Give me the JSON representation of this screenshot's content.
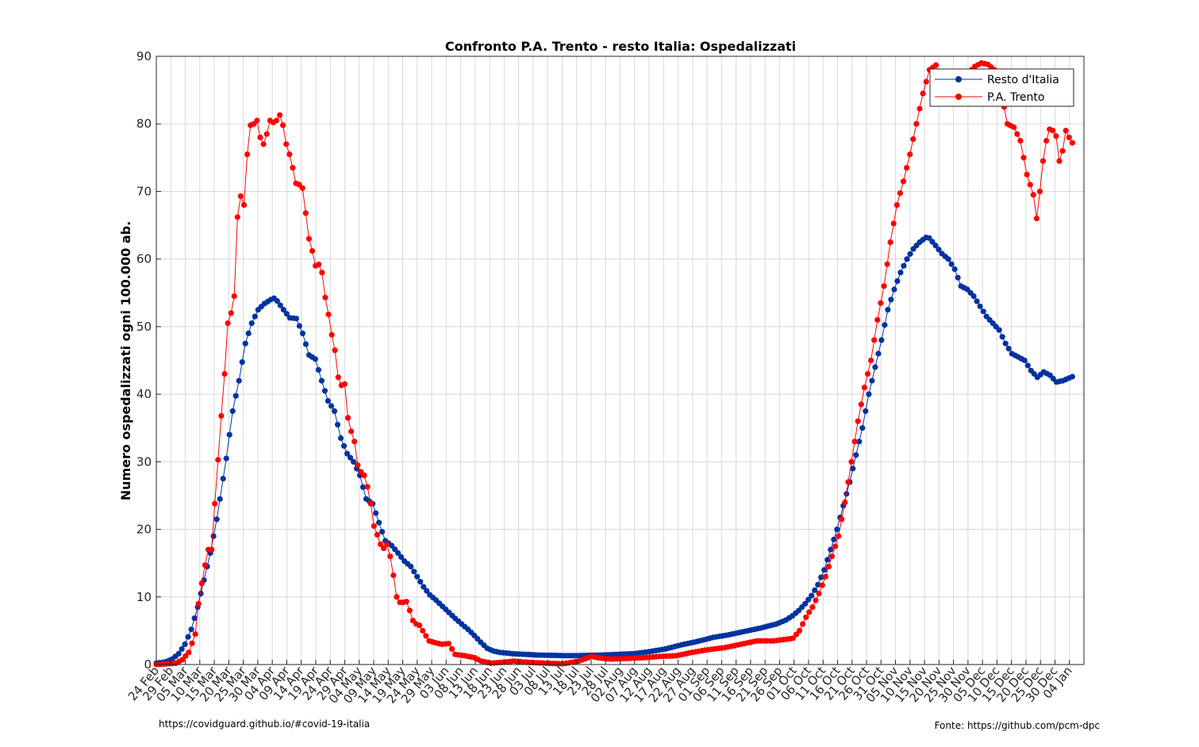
{
  "chart_data": {
    "type": "line",
    "title": "Confronto P.A. Trento - resto Italia: Ospedalizzati",
    "xlabel": "",
    "ylabel": "Numero ospedalizzati ogni 100.000 ab.",
    "ylim": [
      0,
      90
    ],
    "yticks": [
      0,
      10,
      20,
      30,
      40,
      50,
      60,
      70,
      80,
      90
    ],
    "x_start": "24 Feb",
    "x_day_count": 316,
    "tick_every_days": 5,
    "tick_labels": [
      "24 Feb",
      "29 Feb",
      "05 Mar",
      "10 Mar",
      "15 Mar",
      "20 Mar",
      "25 Mar",
      "30 Mar",
      "04 Apr",
      "09 Apr",
      "14 Apr",
      "19 Apr",
      "24 Apr",
      "29 Apr",
      "04 May",
      "09 May",
      "14 May",
      "19 May",
      "24 May",
      "29 May",
      "03 Jun",
      "08 Jun",
      "13 Jun",
      "18 Jun",
      "23 Jun",
      "28 Jun",
      "03 Jul",
      "08 Jul",
      "13 Jul",
      "18 Jul",
      "23 Jul",
      "28 Jul",
      "02 Aug",
      "07 Aug",
      "12 Aug",
      "17 Aug",
      "22 Aug",
      "27 Aug",
      "01 Sep",
      "06 Sep",
      "11 Sep",
      "16 Sep",
      "21 Sep",
      "26 Sep",
      "01 Oct",
      "06 Oct",
      "11 Oct",
      "16 Oct",
      "21 Oct",
      "26 Oct",
      "31 Oct",
      "05 Nov",
      "10 Nov",
      "15 Nov",
      "20 Nov",
      "25 Nov",
      "30 Nov",
      "05 Dec",
      "10 Dec",
      "15 Dec",
      "20 Dec",
      "25 Dec",
      "30 Dec",
      "04 Jan"
    ],
    "grid": true,
    "legend_position": "top-right",
    "series": [
      {
        "name": "Resto d'Italia",
        "color": "#0033a0",
        "keypoints_day_value": [
          [
            0,
            0.2
          ],
          [
            3,
            0.4
          ],
          [
            5,
            0.8
          ],
          [
            7,
            1.6
          ],
          [
            9,
            3.0
          ],
          [
            11,
            5.2
          ],
          [
            13,
            8.5
          ],
          [
            15,
            12.5
          ],
          [
            17,
            16.5
          ],
          [
            19,
            21.5
          ],
          [
            21,
            27.5
          ],
          [
            22,
            30.5
          ],
          [
            23,
            34
          ],
          [
            24,
            37.5
          ],
          [
            26,
            42
          ],
          [
            28,
            47.5
          ],
          [
            30,
            50.5
          ],
          [
            32,
            52.5
          ],
          [
            34,
            53.4
          ],
          [
            36,
            54.0
          ],
          [
            37,
            54.2
          ],
          [
            38,
            53.8
          ],
          [
            40,
            52.5
          ],
          [
            42,
            51.3
          ],
          [
            44,
            51.2
          ],
          [
            46,
            49
          ],
          [
            48,
            45.8
          ],
          [
            50,
            45.2
          ],
          [
            52,
            42
          ],
          [
            54,
            39
          ],
          [
            56,
            37.5
          ],
          [
            58,
            33.5
          ],
          [
            60,
            31.2
          ],
          [
            62,
            30
          ],
          [
            64,
            28
          ],
          [
            66,
            24.5
          ],
          [
            68,
            23.8
          ],
          [
            70,
            21
          ],
          [
            72,
            18.3
          ],
          [
            74,
            17.6
          ],
          [
            76,
            16.5
          ],
          [
            78,
            15.3
          ],
          [
            80,
            14.5
          ],
          [
            82,
            13
          ],
          [
            84,
            11.5
          ],
          [
            86,
            10.3
          ],
          [
            88,
            9.5
          ],
          [
            90,
            8.6
          ],
          [
            92,
            7.7
          ],
          [
            94,
            6.8
          ],
          [
            96,
            6.0
          ],
          [
            98,
            5.2
          ],
          [
            100,
            4.3
          ],
          [
            102,
            3.3
          ],
          [
            104,
            2.4
          ],
          [
            106,
            2.0
          ],
          [
            108,
            1.8
          ],
          [
            112,
            1.6
          ],
          [
            120,
            1.4
          ],
          [
            130,
            1.3
          ],
          [
            140,
            1.4
          ],
          [
            150,
            1.6
          ],
          [
            155,
            1.9
          ],
          [
            160,
            2.3
          ],
          [
            165,
            2.9
          ],
          [
            170,
            3.4
          ],
          [
            175,
            4.0
          ],
          [
            180,
            4.4
          ],
          [
            185,
            4.9
          ],
          [
            190,
            5.4
          ],
          [
            195,
            6.0
          ],
          [
            198,
            6.6
          ],
          [
            200,
            7.2
          ],
          [
            202,
            8.0
          ],
          [
            204,
            9.0
          ],
          [
            206,
            10.2
          ],
          [
            208,
            11.8
          ],
          [
            210,
            14.0
          ],
          [
            212,
            17.0
          ],
          [
            214,
            20.0
          ],
          [
            216,
            23.5
          ],
          [
            218,
            27.0
          ],
          [
            220,
            31.0
          ],
          [
            222,
            35.0
          ],
          [
            224,
            40.0
          ],
          [
            226,
            44.0
          ],
          [
            228,
            48.0
          ],
          [
            230,
            52.5
          ],
          [
            232,
            55.5
          ],
          [
            234,
            58.0
          ],
          [
            236,
            60.0
          ],
          [
            238,
            61.5
          ],
          [
            240,
            62.5
          ],
          [
            242,
            63.2
          ],
          [
            243,
            63.1
          ],
          [
            245,
            62.0
          ],
          [
            247,
            60.8
          ],
          [
            249,
            60.0
          ],
          [
            251,
            58.5
          ],
          [
            253,
            56.0
          ],
          [
            255,
            55.5
          ],
          [
            257,
            54.5
          ],
          [
            259,
            53.0
          ],
          [
            261,
            51.5
          ],
          [
            263,
            50.5
          ],
          [
            265,
            49.5
          ],
          [
            267,
            47.5
          ],
          [
            269,
            46.0
          ],
          [
            271,
            45.5
          ],
          [
            273,
            45.0
          ],
          [
            275,
            43.5
          ],
          [
            277,
            42.5
          ],
          [
            279,
            43.3
          ],
          [
            281,
            42.8
          ],
          [
            283,
            41.8
          ],
          [
            285,
            42.0
          ],
          [
            287,
            42.4
          ],
          [
            288,
            42.6
          ]
        ],
        "values": []
      },
      {
        "name": "P.A. Trento",
        "color": "#ff0000",
        "keypoints_day_value": [
          [
            0,
            0
          ],
          [
            6,
            0.2
          ],
          [
            8,
            0.7
          ],
          [
            10,
            1.8
          ],
          [
            12,
            4.5
          ],
          [
            13,
            9
          ],
          [
            14,
            12
          ],
          [
            15,
            14.7
          ],
          [
            16,
            17
          ],
          [
            17,
            17
          ],
          [
            18,
            23.8
          ],
          [
            19,
            30.3
          ],
          [
            20,
            36.8
          ],
          [
            21,
            43
          ],
          [
            22,
            50.5
          ],
          [
            23,
            52
          ],
          [
            24,
            54.5
          ],
          [
            25,
            66.2
          ],
          [
            26,
            69.3
          ],
          [
            27,
            68
          ],
          [
            28,
            75.5
          ],
          [
            29,
            79.8
          ],
          [
            30,
            80
          ],
          [
            31,
            80.5
          ],
          [
            32,
            78
          ],
          [
            33,
            77
          ],
          [
            34,
            78.5
          ],
          [
            35,
            80.5
          ],
          [
            36,
            80.2
          ],
          [
            37,
            80.5
          ],
          [
            38,
            81.3
          ],
          [
            39,
            79.8
          ],
          [
            40,
            77
          ],
          [
            41,
            75.5
          ],
          [
            42,
            73.5
          ],
          [
            43,
            71.2
          ],
          [
            44,
            71
          ],
          [
            45,
            70.5
          ],
          [
            46,
            66.8
          ],
          [
            47,
            63
          ],
          [
            48,
            61.2
          ],
          [
            49,
            59
          ],
          [
            50,
            59.2
          ],
          [
            51,
            58
          ],
          [
            52,
            54.3
          ],
          [
            53,
            51.8
          ],
          [
            54,
            48.8
          ],
          [
            55,
            46.5
          ],
          [
            56,
            42.5
          ],
          [
            57,
            41.3
          ],
          [
            58,
            41.5
          ],
          [
            59,
            36.5
          ],
          [
            60,
            34.5
          ],
          [
            61,
            33
          ],
          [
            62,
            29.5
          ],
          [
            63,
            28.5
          ],
          [
            64,
            28
          ],
          [
            65,
            26.3
          ],
          [
            66,
            23.8
          ],
          [
            67,
            20.5
          ],
          [
            68,
            19.2
          ],
          [
            69,
            17.8
          ],
          [
            70,
            17.2
          ],
          [
            71,
            17.8
          ],
          [
            72,
            16
          ],
          [
            73,
            13.2
          ],
          [
            74,
            10
          ],
          [
            75,
            9.2
          ],
          [
            76,
            9.2
          ],
          [
            77,
            9.3
          ],
          [
            78,
            8
          ],
          [
            79,
            6.5
          ],
          [
            80,
            6
          ],
          [
            81,
            5.8
          ],
          [
            82,
            5
          ],
          [
            84,
            3.5
          ],
          [
            86,
            3.2
          ],
          [
            88,
            3
          ],
          [
            90,
            3.1
          ],
          [
            92,
            1.5
          ],
          [
            95,
            1.3
          ],
          [
            98,
            1.0
          ],
          [
            100,
            0.5
          ],
          [
            103,
            0.2
          ],
          [
            106,
            0.3
          ],
          [
            110,
            0.5
          ],
          [
            115,
            0.3
          ],
          [
            120,
            0.2
          ],
          [
            125,
            0.1
          ],
          [
            130,
            0.5
          ],
          [
            134,
            1.2
          ],
          [
            136,
            1.0
          ],
          [
            140,
            0.8
          ],
          [
            145,
            0.9
          ],
          [
            150,
            1.0
          ],
          [
            155,
            1.2
          ],
          [
            160,
            1.3
          ],
          [
            165,
            1.8
          ],
          [
            170,
            2.2
          ],
          [
            175,
            2.5
          ],
          [
            180,
            3.0
          ],
          [
            185,
            3.5
          ],
          [
            190,
            3.5
          ],
          [
            195,
            3.8
          ],
          [
            196,
            3.9
          ],
          [
            198,
            5.0
          ],
          [
            200,
            7.0
          ],
          [
            202,
            8.5
          ],
          [
            204,
            10.5
          ],
          [
            206,
            13.0
          ],
          [
            208,
            16.0
          ],
          [
            210,
            19.0
          ],
          [
            212,
            24.0
          ],
          [
            214,
            30.0
          ],
          [
            216,
            36.0
          ],
          [
            218,
            41.0
          ],
          [
            220,
            45.0
          ],
          [
            222,
            51.0
          ],
          [
            224,
            56.0
          ],
          [
            226,
            62.5
          ],
          [
            228,
            68.0
          ],
          [
            230,
            71.5
          ],
          [
            232,
            75.5
          ],
          [
            234,
            80.0
          ],
          [
            236,
            84.5
          ],
          [
            238,
            88.0
          ],
          [
            240,
            88.7
          ],
          [
            242,
            86.0
          ],
          [
            244,
            83.0
          ],
          [
            246,
            83.5
          ],
          [
            248,
            86.0
          ],
          [
            250,
            87.5
          ],
          [
            252,
            88.5
          ],
          [
            254,
            89.0
          ],
          [
            256,
            88.8
          ],
          [
            258,
            88.0
          ],
          [
            260,
            85.0
          ],
          [
            262,
            80.0
          ],
          [
            264,
            79.5
          ],
          [
            266,
            77.5
          ],
          [
            268,
            72.5
          ],
          [
            270,
            69.5
          ],
          [
            271,
            66.0
          ],
          [
            272,
            70.0
          ],
          [
            273,
            74.5
          ],
          [
            274,
            77.5
          ],
          [
            275,
            79.2
          ],
          [
            276,
            79.0
          ],
          [
            277,
            78.2
          ],
          [
            278,
            74.5
          ],
          [
            279,
            76.0
          ],
          [
            280,
            79.0
          ],
          [
            281,
            78.0
          ],
          [
            282,
            77.2
          ]
        ],
        "values": []
      }
    ]
  },
  "footer": {
    "left": "https://covidguard.github.io/#covid-19-italia",
    "right": "Fonte: https://github.com/pcm-dpc"
  }
}
